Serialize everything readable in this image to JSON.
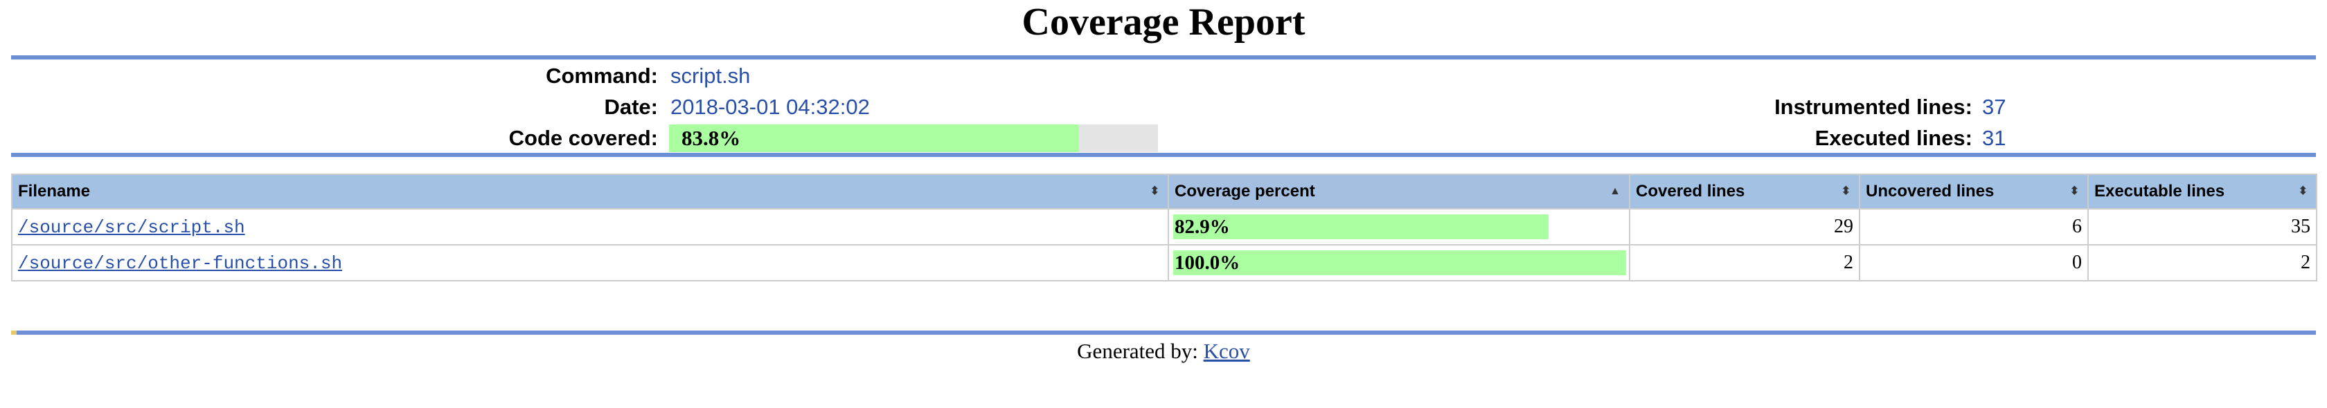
{
  "page": {
    "title": "Coverage Report"
  },
  "header": {
    "command_label": "Command:",
    "command_value": "script.sh",
    "date_label": "Date:",
    "date_value": "2018-03-01 04:32:02",
    "covered_label": "Code covered:",
    "covered_value": "83.8%",
    "covered_fraction": 0.838,
    "instrumented_label": "Instrumented lines:",
    "instrumented_value": "37",
    "executed_label": "Executed lines:",
    "executed_value": "31"
  },
  "table": {
    "columns": [
      {
        "label": "Filename",
        "sort_icon": "⬍"
      },
      {
        "label": "Coverage percent",
        "sort_icon": "▲"
      },
      {
        "label": "Covered lines",
        "sort_icon": "⬍"
      },
      {
        "label": "Uncovered lines",
        "sort_icon": "⬍"
      },
      {
        "label": "Executable lines",
        "sort_icon": "⬍"
      }
    ],
    "rows": [
      {
        "filename": "/source/src/script.sh",
        "coverage_percent": "82.9%",
        "coverage_fraction": 0.829,
        "covered": "29",
        "uncovered": "6",
        "executable": "35"
      },
      {
        "filename": "/source/src/other-functions.sh",
        "coverage_percent": "100.0%",
        "coverage_fraction": 1.0,
        "covered": "2",
        "uncovered": "0",
        "executable": "2"
      }
    ]
  },
  "footer": {
    "generated_label": "Generated by:",
    "link_text": "Kcov"
  },
  "colors": {
    "accent_rule": "#6c8fd6",
    "bar_fill": "#aaffa0",
    "link": "#284fa8",
    "header_bg": "#a2c1e3"
  }
}
